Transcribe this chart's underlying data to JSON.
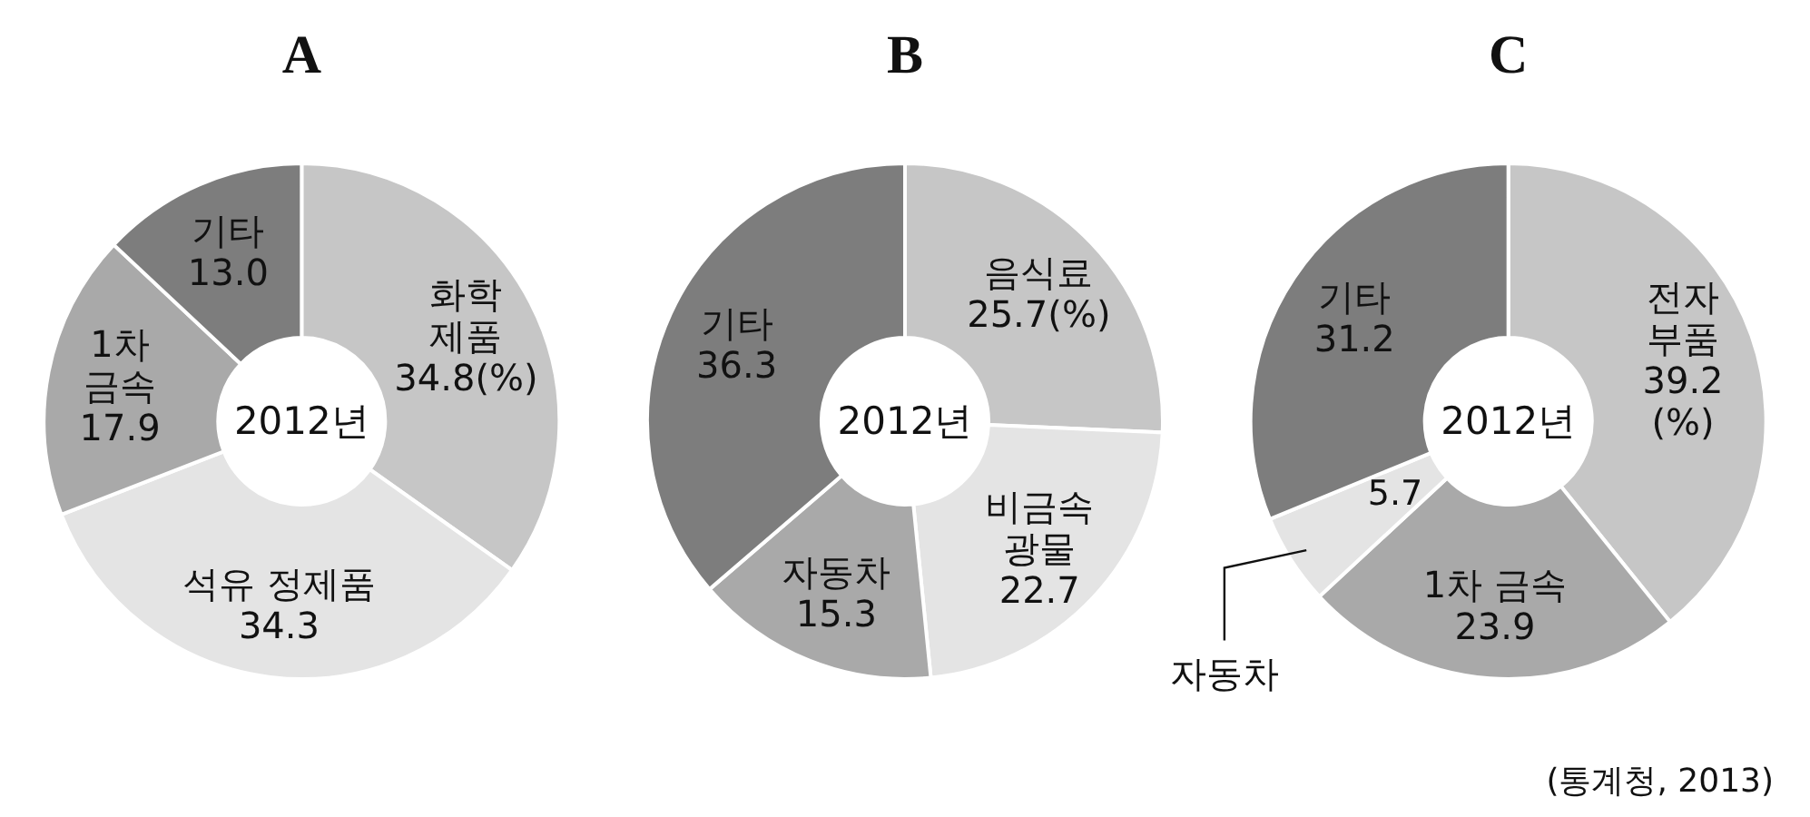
{
  "chart_data": [
    {
      "type": "donut",
      "title": "A",
      "annotations": [
        "2012년"
      ],
      "categories": [
        "화학\n제품",
        "석유 정제품",
        "1차\n금속",
        "기타"
      ],
      "values": [
        34.8,
        34.3,
        17.9,
        13.0
      ],
      "value_labels": [
        "34.8(%)",
        "34.3",
        "17.9",
        "13.0"
      ],
      "colors": [
        "#c6c6c6",
        "#e4e4e4",
        "#a9a9a9",
        "#7d7d7d"
      ]
    },
    {
      "type": "donut",
      "title": "B",
      "annotations": [
        "2012년"
      ],
      "categories": [
        "음식료",
        "비금속\n광물",
        "자동차",
        "기타"
      ],
      "values": [
        25.7,
        22.7,
        15.3,
        36.3
      ],
      "value_labels": [
        "25.7(%)",
        "22.7",
        "15.3",
        "36.3"
      ],
      "colors": [
        "#c6c6c6",
        "#e4e4e4",
        "#a9a9a9",
        "#7d7d7d"
      ]
    },
    {
      "type": "donut",
      "title": "C",
      "annotations": [
        "2012년",
        "(통계청, 2013)"
      ],
      "categories": [
        "전자\n부품",
        "1차 금속",
        "자동차",
        "기타"
      ],
      "values": [
        39.2,
        23.9,
        5.7,
        31.2
      ],
      "value_labels": [
        "39.2\n(%)",
        "23.9",
        "5.7",
        "31.2"
      ],
      "colors": [
        "#c6c6c6",
        "#a9a9a9",
        "#e4e4e4",
        "#7d7d7d"
      ]
    }
  ]
}
